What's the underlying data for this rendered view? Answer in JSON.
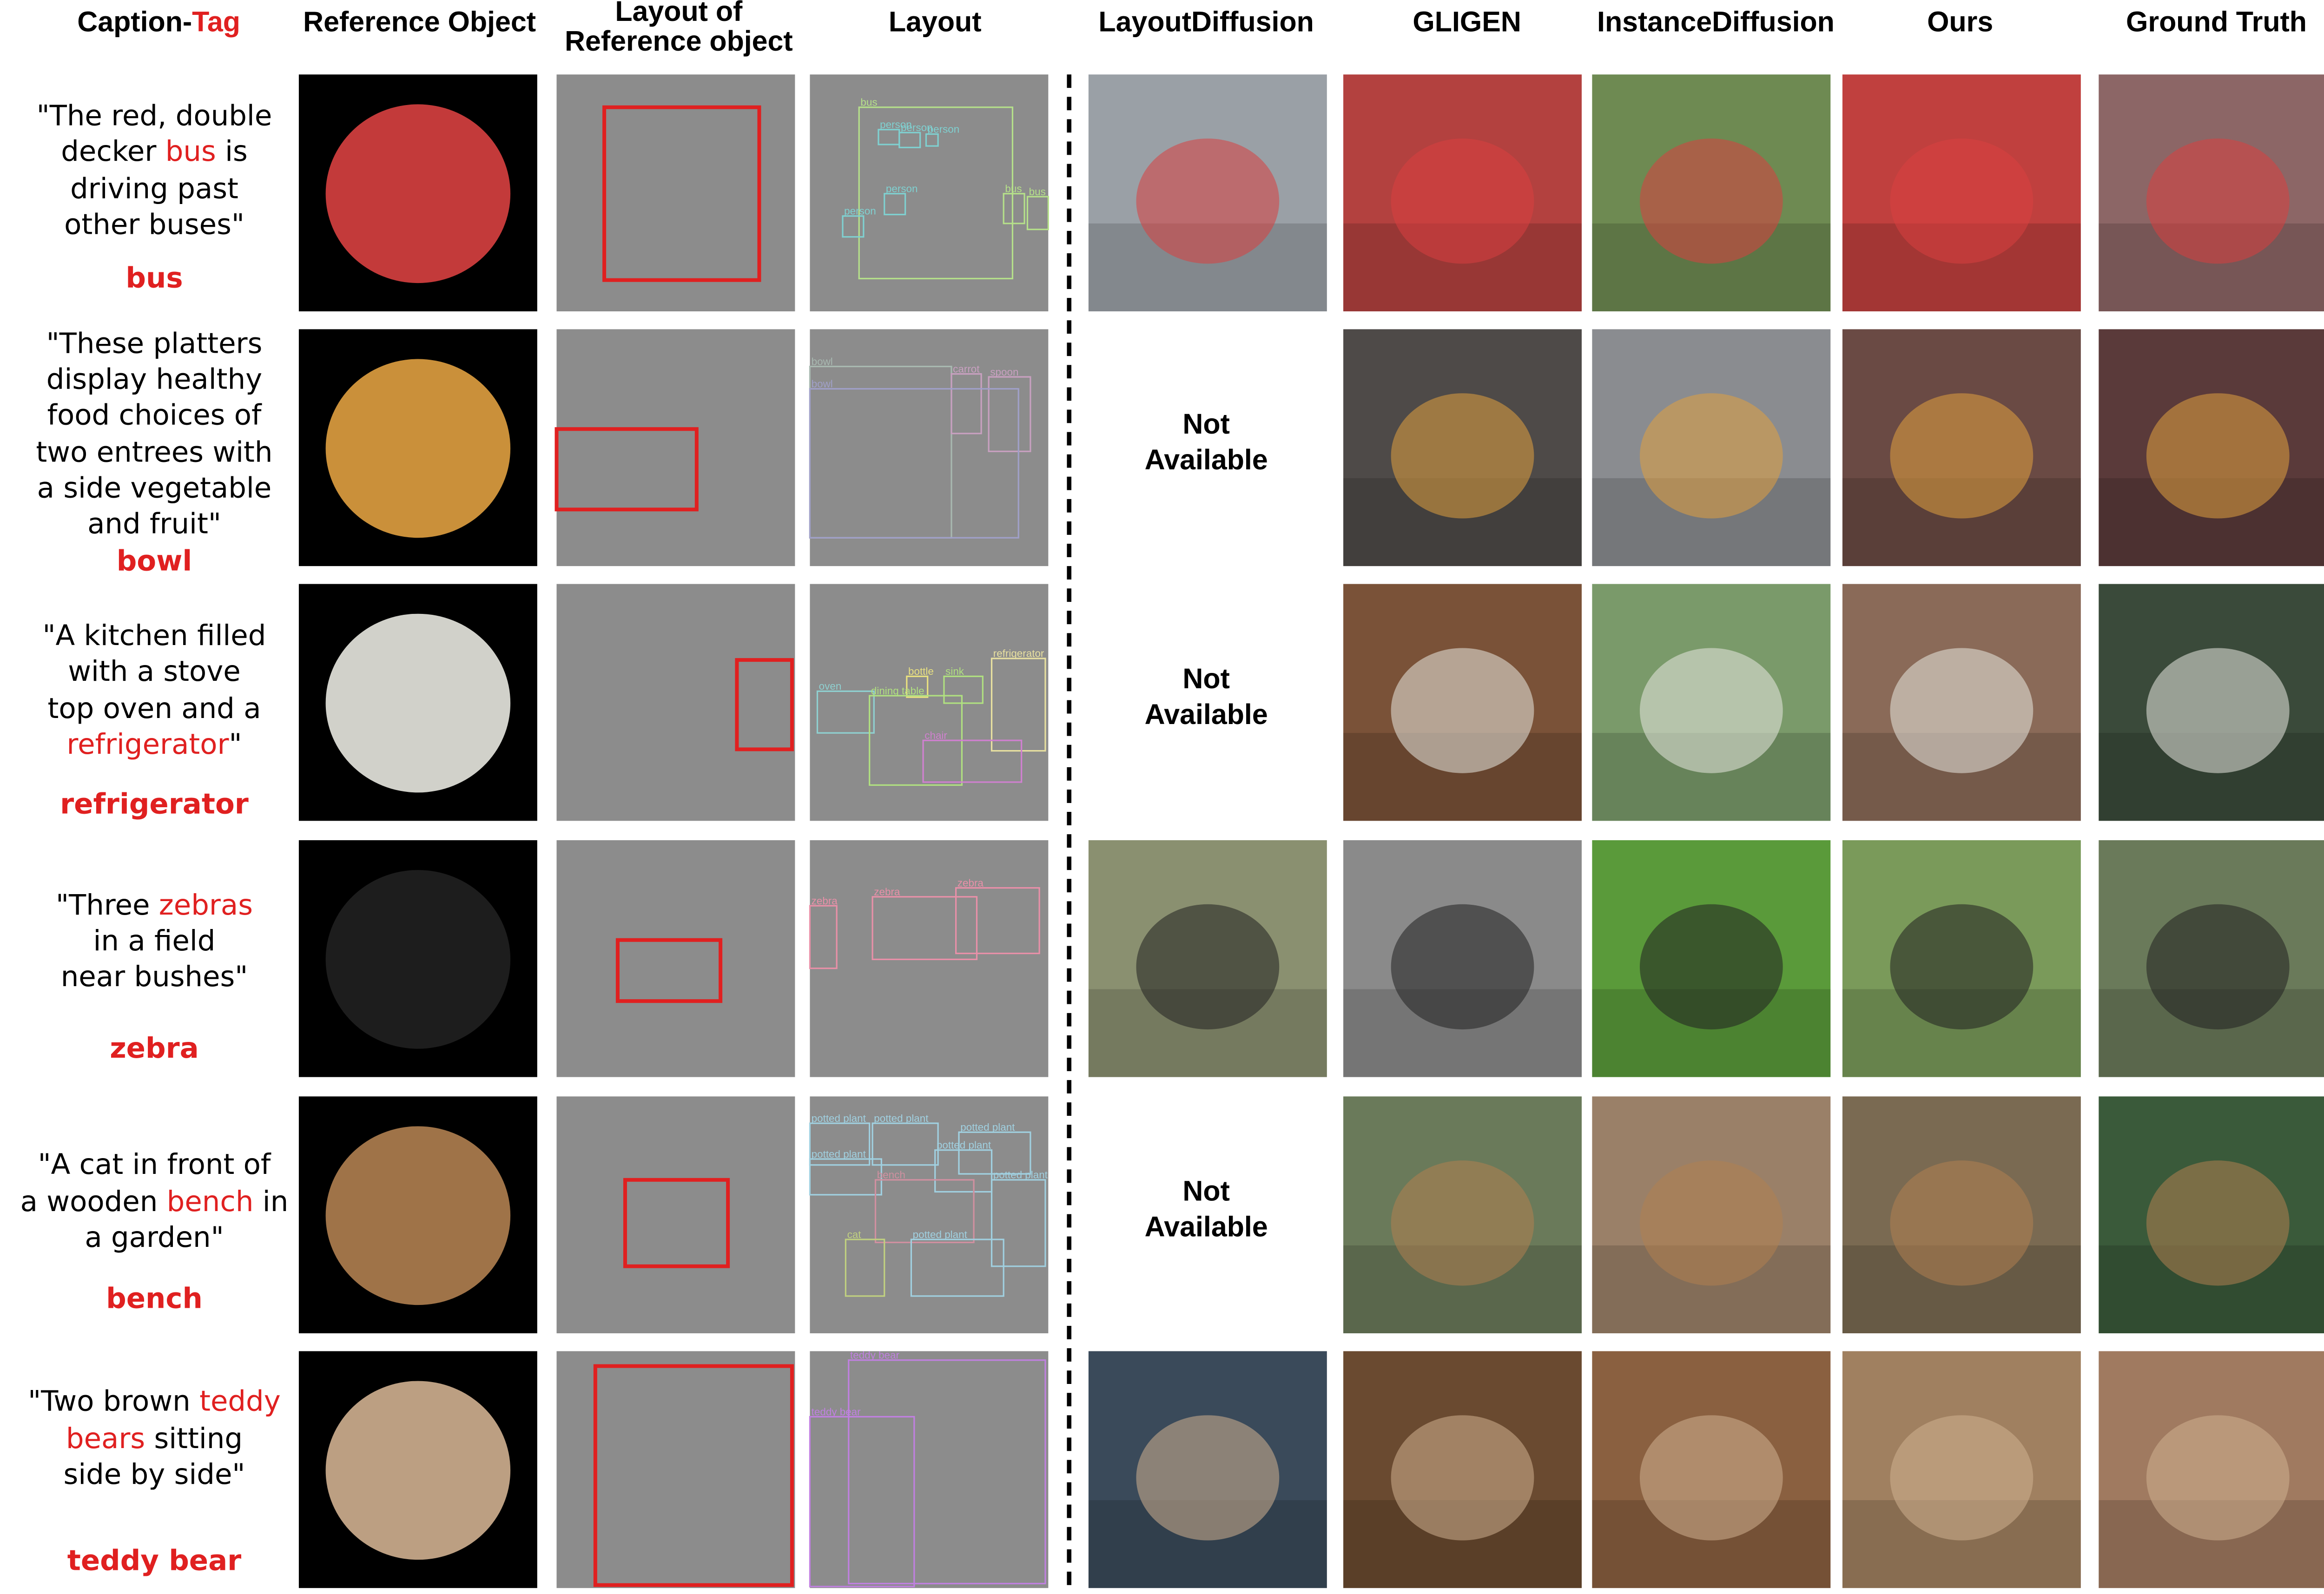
{
  "headers": {
    "caption": "Caption-",
    "tag": "Tag",
    "columns": [
      [
        "Reference Object"
      ],
      [
        "Layout of",
        "Reference object"
      ],
      [
        "Layout"
      ],
      [
        "LayoutDiffusion"
      ],
      [
        "GLIGEN"
      ],
      [
        "InstanceDiffusion"
      ],
      [
        "Ours"
      ],
      [
        "Ground Truth"
      ]
    ]
  },
  "rows": [
    {
      "caption": [
        [
          {
            "text": "\"The red, double",
            "highlight": false
          }
        ],
        [
          {
            "text": "decker ",
            "highlight": false
          },
          {
            "text": "bus",
            "highlight": true
          },
          {
            "text": " is",
            "highlight": false
          }
        ],
        [
          {
            "text": "driving past",
            "highlight": false
          }
        ],
        [
          {
            "text": "other buses\"",
            "highlight": false
          }
        ]
      ],
      "tag": "bus",
      "layout_labels": [
        "bus",
        "person",
        "person",
        "person",
        "person",
        "person",
        "bus",
        "bus"
      ]
    },
    {
      "caption": [
        [
          {
            "text": "\"These platters",
            "highlight": false
          }
        ],
        [
          {
            "text": "display healthy",
            "highlight": false
          }
        ],
        [
          {
            "text": "food choices of",
            "highlight": false
          }
        ],
        [
          {
            "text": "two entrees with",
            "highlight": false
          }
        ],
        [
          {
            "text": "a side vegetable",
            "highlight": false
          }
        ],
        [
          {
            "text": "and fruit\"",
            "highlight": false
          }
        ]
      ],
      "tag": "bowl",
      "layout_labels": [
        "bowl",
        "carrot",
        "spoon",
        "bowl"
      ],
      "not_available": [
        "Not",
        "Available"
      ]
    },
    {
      "caption": [
        [
          {
            "text": "\"A kitchen filled",
            "highlight": false
          }
        ],
        [
          {
            "text": "with a stove",
            "highlight": false
          }
        ],
        [
          {
            "text": "top oven and a",
            "highlight": false
          }
        ],
        [
          {
            "text": "refrigerator",
            "highlight": true
          },
          {
            "text": "\"",
            "highlight": false
          }
        ]
      ],
      "tag": "refrigerator",
      "layout_labels": [
        "oven",
        "bottle",
        "sink",
        "dining table",
        "refrigerator",
        "chair"
      ],
      "not_available": [
        "Not",
        "Available"
      ]
    },
    {
      "caption": [
        [
          {
            "text": "\"Three ",
            "highlight": false
          },
          {
            "text": "zebras",
            "highlight": true
          }
        ],
        [
          {
            "text": "in a field",
            "highlight": false
          }
        ],
        [
          {
            "text": "near bushes\"",
            "highlight": false
          }
        ]
      ],
      "tag": "zebra",
      "layout_labels": [
        "zebra",
        "zebra",
        "zebra"
      ]
    },
    {
      "caption": [
        [
          {
            "text": "\"A cat in front of",
            "highlight": false
          }
        ],
        [
          {
            "text": "a wooden ",
            "highlight": false
          },
          {
            "text": "bench",
            "highlight": true
          },
          {
            "text": " in",
            "highlight": false
          }
        ],
        [
          {
            "text": "a garden\"",
            "highlight": false
          }
        ]
      ],
      "tag": "bench",
      "layout_labels": [
        "potted plant",
        "potted plant",
        "potted plant",
        "potted plant",
        "potted plant",
        "bench",
        "potted plant",
        "cat",
        "potted plant"
      ],
      "not_available": [
        "Not",
        "Available"
      ]
    },
    {
      "caption": [
        [
          {
            "text": "\"Two brown ",
            "highlight": false
          },
          {
            "text": "teddy",
            "highlight": true
          }
        ],
        [
          {
            "text": "bears",
            "highlight": true
          },
          {
            "text": " sitting",
            "highlight": false
          }
        ],
        [
          {
            "text": "side by side\"",
            "highlight": false
          }
        ]
      ],
      "tag": "teddy bear",
      "layout_labels": [
        "teddy bear",
        "teddy bear"
      ]
    }
  ]
}
